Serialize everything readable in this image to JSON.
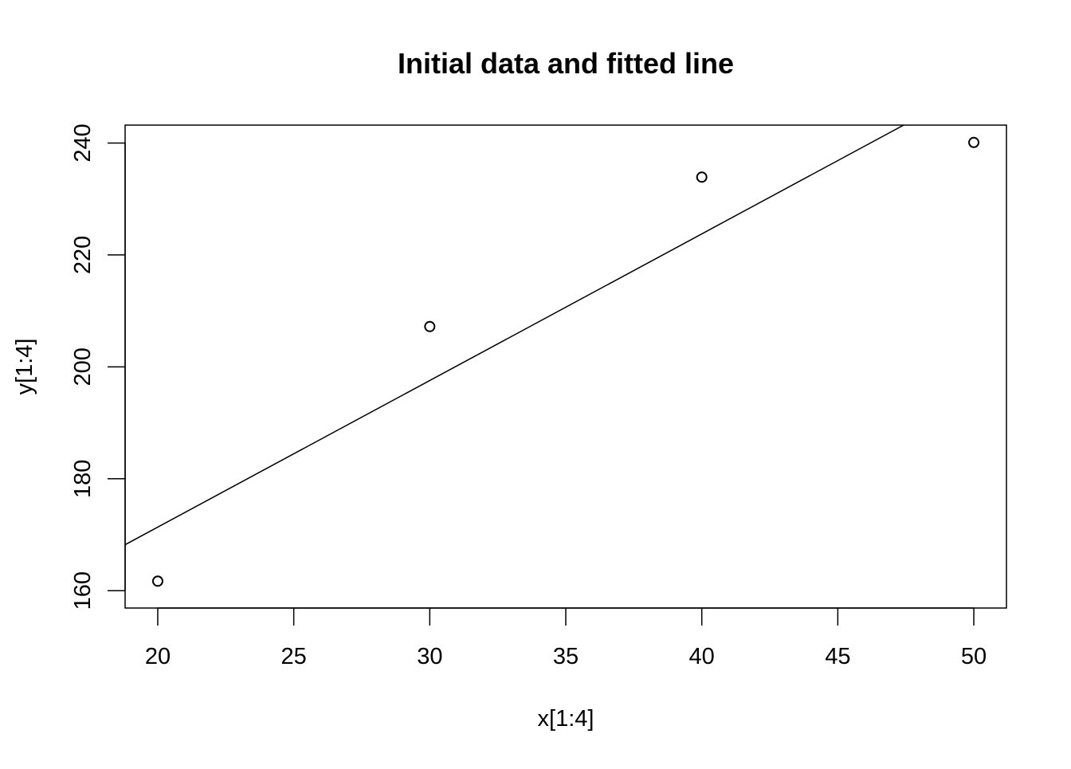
{
  "chart_data": {
    "type": "scatter",
    "title": "Initial data and fitted line",
    "xlabel": "x[1:4]",
    "ylabel": "y[1:4]",
    "xlim": [
      18.8,
      51.2
    ],
    "ylim": [
      156.9,
      243.2
    ],
    "xticks": [
      20,
      25,
      30,
      35,
      40,
      45,
      50
    ],
    "yticks": [
      160,
      180,
      200,
      220,
      240
    ],
    "grid": false,
    "series": [
      {
        "marker": "open-circle",
        "x": [
          20,
          30,
          40,
          50
        ],
        "y": [
          161.7,
          207.2,
          233.9,
          240.1
        ]
      }
    ],
    "fitted_line": {
      "intercept": 118.96,
      "slope": 2.62
    }
  }
}
